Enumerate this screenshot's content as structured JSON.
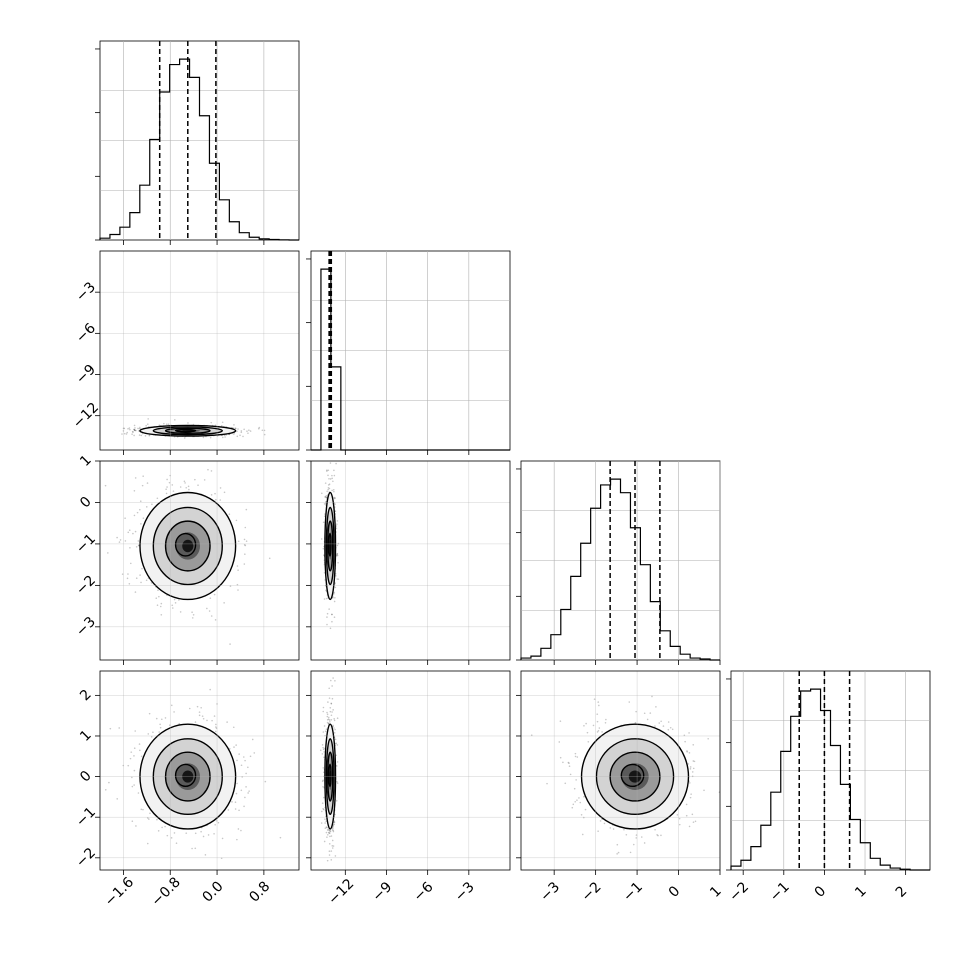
{
  "chart_data": {
    "type": "corner",
    "grid": true,
    "contour_levels": 4,
    "params": [
      {
        "id": "p0",
        "range": [
          -2.0,
          1.4
        ],
        "ticks": [
          -1.6,
          -0.8,
          0.0,
          0.8
        ],
        "tick_labels": [
          "−1.6",
          "−0.8",
          "0.0",
          "0.8"
        ],
        "mean": -0.5,
        "sigma": 0.38,
        "quantiles": [
          -0.98,
          -0.5,
          -0.02
        ],
        "hist": {
          "edges": [
            -2.0,
            -1.83,
            -1.66,
            -1.49,
            -1.32,
            -1.15,
            -0.98,
            -0.81,
            -0.64,
            -0.47,
            -0.3,
            -0.13,
            0.04,
            0.21,
            0.38,
            0.55,
            0.72,
            0.89,
            1.06,
            1.23,
            1.4
          ],
          "counts": [
            1,
            3,
            7,
            15,
            30,
            55,
            81,
            96,
            99,
            89,
            68,
            42,
            22,
            10,
            4,
            1.5,
            0.6,
            0.3,
            0.1,
            0
          ]
        }
      },
      {
        "id": "p1",
        "range": [
          -14.5,
          0.0
        ],
        "ticks": [
          -12,
          -9,
          -6,
          -3
        ],
        "tick_labels": [
          "−12",
          "−9",
          "−6",
          "−3"
        ],
        "mean": -13.1,
        "sigma": 0.18,
        "quantiles": [
          -13.18,
          -13.1,
          -13.02
        ],
        "hist": {
          "edges": [
            -14.5,
            -13.775,
            -13.05,
            -12.325,
            -11.6,
            -10.875,
            -10.15,
            -9.425,
            -8.7,
            -7.975,
            -7.25,
            -6.525,
            -5.8,
            -5.075,
            -4.35,
            -3.625,
            -2.9,
            -2.175,
            -1.45,
            -0.725,
            0.0
          ],
          "counts": [
            0,
            185,
            85,
            0,
            0,
            0,
            0,
            0,
            0,
            0,
            0,
            0,
            0,
            0,
            0,
            0,
            0,
            0,
            0,
            0
          ]
        }
      },
      {
        "id": "p2",
        "range": [
          -3.8,
          1.0
        ],
        "ticks": [
          -3,
          -2,
          -1,
          0,
          1
        ],
        "tick_labels": [
          "−3",
          "−2",
          "−1",
          "0",
          "1"
        ],
        "mean": -1.05,
        "sigma": 0.6,
        "quantiles": [
          -1.65,
          -1.05,
          -0.45
        ],
        "hist": {
          "edges": [
            -3.8,
            -3.56,
            -3.32,
            -3.08,
            -2.84,
            -2.6,
            -2.36,
            -2.12,
            -1.88,
            -1.64,
            -1.4,
            -1.16,
            -0.92,
            -0.68,
            -0.44,
            -0.2,
            0.04,
            0.28,
            0.52,
            0.76,
            1.0
          ],
          "counts": [
            1,
            2,
            6,
            13,
            26,
            43,
            60,
            78,
            90,
            93,
            86,
            68,
            49,
            30,
            15,
            7,
            3,
            1,
            0.5,
            0
          ]
        }
      },
      {
        "id": "p3",
        "range": [
          -2.3,
          2.6
        ],
        "ticks": [
          -2,
          -1,
          0,
          1,
          2
        ],
        "tick_labels": [
          "−2",
          "−1",
          "0",
          "1",
          "2"
        ],
        "mean": 0.0,
        "sigma": 0.6,
        "quantiles": [
          -0.62,
          0.0,
          0.62
        ],
        "hist": {
          "edges": [
            -2.3,
            -2.055,
            -1.81,
            -1.565,
            -1.32,
            -1.075,
            -0.83,
            -0.585,
            -0.34,
            -0.095,
            0.15,
            0.395,
            0.64,
            0.885,
            1.13,
            1.375,
            1.62,
            1.865,
            2.11,
            2.355,
            2.6
          ],
          "counts": [
            2,
            5,
            12,
            23,
            40,
            61,
            79,
            92,
            93,
            82,
            64,
            44,
            26,
            14,
            6,
            2.5,
            1,
            0.4,
            0,
            0
          ]
        }
      }
    ],
    "pairs": [
      {
        "x": "p0",
        "y": "p1",
        "sx": 0.38,
        "sy": 0.18
      },
      {
        "x": "p0",
        "y": "p2",
        "sx": 0.38,
        "sy": 0.6
      },
      {
        "x": "p1",
        "y": "p2",
        "sx": 0.18,
        "sy": 0.6
      },
      {
        "x": "p0",
        "y": "p3",
        "sx": 0.38,
        "sy": 0.6
      },
      {
        "x": "p1",
        "y": "p3",
        "sx": 0.18,
        "sy": 0.6
      },
      {
        "x": "p2",
        "y": "p3",
        "sx": 0.6,
        "sy": 0.6
      }
    ],
    "y_ticks": {
      "p1": {
        "ticks": [
          -3,
          -6,
          -9,
          -12
        ],
        "tick_labels": [
          "−3",
          "−6",
          "−9",
          "−12"
        ]
      },
      "p2": {
        "ticks": [
          1,
          0,
          -1,
          -2,
          -3
        ],
        "tick_labels": [
          "1",
          "0",
          "−1",
          "−2",
          "−3"
        ]
      },
      "p3": {
        "ticks": [
          2,
          1,
          0,
          -1,
          -2
        ],
        "tick_labels": [
          "2",
          "1",
          "0",
          "−1",
          "−2"
        ]
      }
    }
  }
}
